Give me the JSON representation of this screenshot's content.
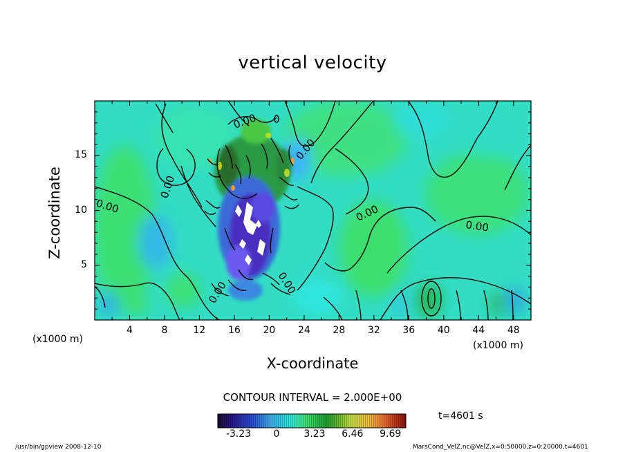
{
  "chart_data": {
    "type": "heatmap",
    "title": "vertical velocity",
    "xlabel": "X-coordinate",
    "ylabel": "Z-coordinate",
    "x_unit": "(x1000 m)",
    "xlim": [
      0,
      50
    ],
    "ylim": [
      0,
      20
    ],
    "x_ticks": [
      "4",
      "8",
      "12",
      "16",
      "20",
      "24",
      "28",
      "32",
      "36",
      "40",
      "44",
      "48"
    ],
    "y_ticks": [
      "5",
      "10",
      "15"
    ],
    "contour_interval_text": "CONTOUR INTERVAL = 2.000E+00",
    "contour_labels": [
      "0.00",
      "0.00",
      "0.00",
      "0.00",
      "0.00",
      "0.00",
      "0.00",
      "0.00"
    ],
    "colorbar": {
      "ticks": [
        "-3.23",
        "0",
        "3.23",
        "6.46",
        "9.69"
      ],
      "range": [
        -5.0,
        11.0
      ]
    },
    "time_label": "t=4601 s"
  },
  "footer": {
    "left": "/usr/bin/gpview   2008-12-10",
    "right": "MarsCond_VelZ.nc@VelZ,x=0:50000,z=0:20000,t=4601"
  }
}
